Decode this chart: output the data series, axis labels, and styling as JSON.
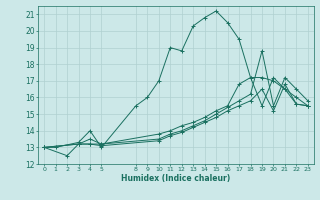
{
  "xlabel": "Humidex (Indice chaleur)",
  "bg_color": "#cce8e8",
  "grid_color": "#b0d0d0",
  "line_color": "#1a7060",
  "xlim": [
    -0.5,
    23.5
  ],
  "ylim": [
    12,
    21.5
  ],
  "yticks": [
    12,
    13,
    14,
    15,
    16,
    17,
    18,
    19,
    20,
    21
  ],
  "xticks": [
    0,
    1,
    2,
    3,
    4,
    5,
    8,
    9,
    10,
    11,
    12,
    13,
    14,
    15,
    16,
    17,
    18,
    19,
    20,
    21,
    22,
    23
  ],
  "series": [
    {
      "x": [
        0,
        1,
        3,
        4,
        5,
        8,
        9,
        10,
        11,
        12,
        13,
        14,
        15,
        16,
        17,
        18,
        19,
        20,
        21,
        22,
        23
      ],
      "y": [
        13,
        13,
        13.3,
        14,
        13,
        15.5,
        16,
        17,
        19,
        18.8,
        20.3,
        20.8,
        21.2,
        20.5,
        19.5,
        17.2,
        15.5,
        17.2,
        16.5,
        16.0,
        15.5
      ]
    },
    {
      "x": [
        0,
        2,
        3,
        4,
        5,
        10,
        11,
        12,
        13,
        14,
        15,
        16,
        17,
        18,
        19,
        20,
        21,
        22,
        23
      ],
      "y": [
        13,
        12.5,
        13.2,
        13.2,
        13.1,
        13.4,
        13.7,
        13.9,
        14.2,
        14.5,
        14.8,
        15.2,
        15.5,
        15.8,
        16.5,
        15.2,
        16.8,
        15.6,
        15.5
      ]
    },
    {
      "x": [
        0,
        3,
        4,
        5,
        10,
        11,
        12,
        13,
        14,
        15,
        16,
        17,
        18,
        19,
        20,
        21,
        22,
        23
      ],
      "y": [
        13,
        13.2,
        13.2,
        13.2,
        13.5,
        13.8,
        14.0,
        14.3,
        14.6,
        15.0,
        15.4,
        15.8,
        16.2,
        18.8,
        15.5,
        17.2,
        16.5,
        15.8
      ]
    },
    {
      "x": [
        0,
        3,
        4,
        5,
        10,
        11,
        12,
        13,
        14,
        15,
        16,
        17,
        18,
        19,
        20,
        21,
        22,
        23
      ],
      "y": [
        13,
        13.2,
        13.5,
        13.2,
        13.8,
        14.0,
        14.3,
        14.5,
        14.8,
        15.2,
        15.5,
        16.8,
        17.2,
        17.2,
        17.0,
        16.5,
        15.6,
        15.5
      ]
    }
  ]
}
